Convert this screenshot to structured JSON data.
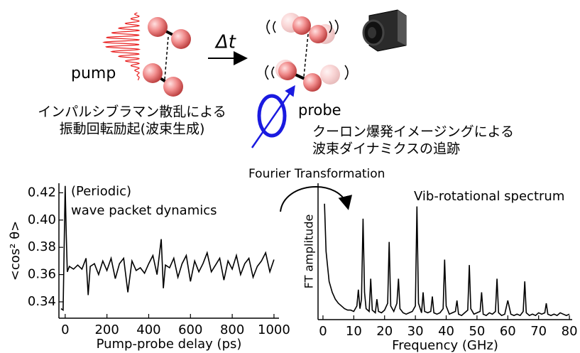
{
  "diagram": {
    "pump_label": "pump",
    "delay_label": "Δt",
    "probe_label": "probe",
    "excitation_text": [
      "インパルシブラマン散乱による",
      "振動回転励起(波束生成)"
    ],
    "imaging_text": [
      "クーロン爆発イメージングによる",
      "波束ダイナミクスの追跡"
    ],
    "transform_label": "Fourier Transformation"
  },
  "chart_data": [
    {
      "type": "line",
      "x_label": "Pump-probe delay (ps)",
      "y_label": "<cos² θ>",
      "annotations": [
        "(Periodic)",
        "wave packet dynamics"
      ],
      "x": [
        -20,
        -10,
        0,
        5,
        10,
        20,
        40,
        60,
        80,
        100,
        110,
        120,
        140,
        160,
        180,
        200,
        220,
        240,
        260,
        280,
        300,
        320,
        340,
        360,
        380,
        400,
        420,
        440,
        460,
        470,
        480,
        500,
        520,
        540,
        560,
        580,
        600,
        620,
        640,
        660,
        680,
        700,
        720,
        740,
        760,
        780,
        800,
        820,
        840,
        860,
        880,
        900,
        920,
        940,
        960,
        980,
        1000
      ],
      "series": [
        {
          "color": "#000000",
          "values": [
            0.335,
            0.334,
            0.425,
            0.39,
            0.362,
            0.366,
            0.364,
            0.367,
            0.364,
            0.372,
            0.345,
            0.366,
            0.368,
            0.36,
            0.37,
            0.363,
            0.372,
            0.357,
            0.368,
            0.372,
            0.347,
            0.37,
            0.363,
            0.365,
            0.361,
            0.368,
            0.374,
            0.36,
            0.386,
            0.35,
            0.367,
            0.365,
            0.372,
            0.358,
            0.368,
            0.374,
            0.355,
            0.37,
            0.362,
            0.368,
            0.376,
            0.362,
            0.367,
            0.372,
            0.356,
            0.37,
            0.364,
            0.374,
            0.36,
            0.368,
            0.372,
            0.358,
            0.366,
            0.37,
            0.376,
            0.362,
            0.371
          ]
        }
      ],
      "xlim": [
        -30,
        1024
      ],
      "ylim": [
        0.328,
        0.427
      ],
      "xticks": [
        0,
        200,
        400,
        600,
        800,
        1000
      ],
      "yticks": [
        0.34,
        0.36,
        0.38,
        {
          "value": 0.4,
          "label": "0.40"
        },
        0.42
      ]
    },
    {
      "type": "line",
      "x_label": "Frequency (GHz)",
      "y_label": "FT amplitude",
      "annotations": [
        "Vib-rotational spectrum"
      ],
      "x": [
        0.5,
        1,
        2,
        3,
        4,
        5,
        6,
        7,
        8,
        9,
        10,
        11,
        11.5,
        12,
        12.5,
        13,
        13.5,
        14,
        15,
        15.5,
        16,
        17,
        17.5,
        18,
        19,
        20,
        21,
        21.5,
        22,
        23,
        24,
        24.5,
        25,
        26,
        27,
        28,
        29,
        30,
        30.5,
        31,
        32,
        32.5,
        33,
        34,
        35,
        35.5,
        36,
        37,
        38,
        39,
        39.5,
        40,
        41,
        42,
        43,
        43.5,
        44,
        45,
        46,
        47,
        47.5,
        48,
        49,
        50,
        51,
        51.5,
        52,
        53,
        54,
        55,
        56,
        56.5,
        57,
        58,
        59,
        60,
        61,
        62,
        63,
        64,
        65,
        65.5,
        66,
        67,
        68,
        69,
        70,
        71,
        72,
        72.5,
        73,
        74,
        75,
        76,
        77,
        78,
        79,
        80
      ],
      "series": [
        {
          "color": "#000000",
          "values": [
            0.85,
            0.5,
            0.28,
            0.2,
            0.15,
            0.12,
            0.1,
            0.08,
            0.07,
            0.07,
            0.06,
            0.1,
            0.22,
            0.08,
            0.15,
            0.74,
            0.2,
            0.08,
            0.06,
            0.3,
            0.07,
            0.05,
            0.15,
            0.06,
            0.05,
            0.07,
            0.12,
            0.57,
            0.1,
            0.06,
            0.12,
            0.3,
            0.08,
            0.05,
            0.04,
            0.05,
            0.06,
            0.1,
            0.83,
            0.12,
            0.05,
            0.2,
            0.06,
            0.05,
            0.06,
            0.17,
            0.05,
            0.04,
            0.05,
            0.08,
            0.44,
            0.1,
            0.04,
            0.05,
            0.06,
            0.14,
            0.04,
            0.03,
            0.05,
            0.07,
            0.4,
            0.08,
            0.04,
            0.05,
            0.06,
            0.2,
            0.04,
            0.03,
            0.05,
            0.04,
            0.06,
            0.3,
            0.05,
            0.03,
            0.04,
            0.14,
            0.04,
            0.03,
            0.04,
            0.03,
            0.06,
            0.28,
            0.05,
            0.03,
            0.04,
            0.03,
            0.05,
            0.04,
            0.05,
            0.12,
            0.04,
            0.03,
            0.04,
            0.03,
            0.05,
            0.04,
            0.03,
            0.04
          ]
        }
      ],
      "xlim": [
        -1.6,
        80.9
      ],
      "ylim": [
        0,
        1
      ],
      "xticks": [
        0,
        10,
        20,
        30,
        40,
        50,
        60,
        70,
        80
      ]
    }
  ]
}
